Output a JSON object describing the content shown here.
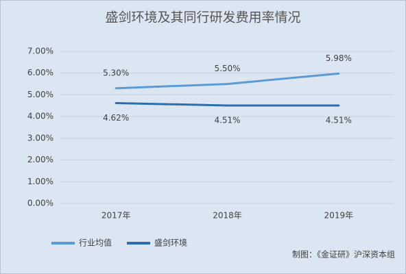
{
  "chart_data": {
    "type": "line",
    "title": "盛剑环境及其同行研发费用率情况",
    "categories": [
      "2017年",
      "2018年",
      "2019年"
    ],
    "series": [
      {
        "name": "行业均值",
        "color": "#5b9bd5",
        "values": [
          5.3,
          5.5,
          5.98
        ],
        "value_labels": [
          "5.30%",
          "5.50%",
          "5.98%"
        ]
      },
      {
        "name": "盛剑环境",
        "color": "#2e6ead",
        "values": [
          4.62,
          4.51,
          4.51
        ],
        "value_labels": [
          "4.62%",
          "4.51%",
          "4.51%"
        ]
      }
    ],
    "ylim": [
      0,
      7
    ],
    "yticks": [
      {
        "value": 0,
        "label": "0.00%"
      },
      {
        "value": 1,
        "label": "1.00%"
      },
      {
        "value": 2,
        "label": "2.00%"
      },
      {
        "value": 3,
        "label": "3.00%"
      },
      {
        "value": 4,
        "label": "4.00%"
      },
      {
        "value": 5,
        "label": "5.00%"
      },
      {
        "value": 6,
        "label": "6.00%"
      },
      {
        "value": 7,
        "label": "7.00%"
      }
    ],
    "grid": true,
    "legend": "bottom-left",
    "source": "制图：《金证研》沪深资本组"
  }
}
